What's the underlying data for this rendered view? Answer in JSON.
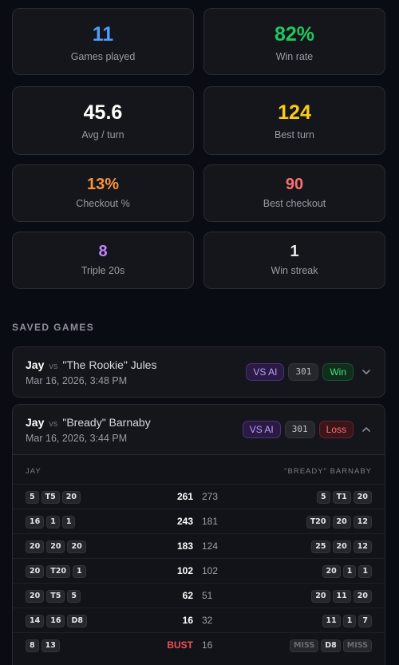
{
  "stats": [
    {
      "value": "11",
      "label": "Games played",
      "color": "#4f9cf9"
    },
    {
      "value": "82%",
      "label": "Win rate",
      "color": "#22c55e"
    },
    {
      "value": "45.6",
      "label": "Avg / turn",
      "color": "#ffffff"
    },
    {
      "value": "124",
      "label": "Best turn",
      "color": "#facc15"
    },
    {
      "value": "13%",
      "label": "Checkout %",
      "color": "#fb923c"
    },
    {
      "value": "90",
      "label": "Best checkout",
      "color": "#f87171"
    },
    {
      "value": "8",
      "label": "Triple 20s",
      "color": "#c084fc"
    },
    {
      "value": "1",
      "label": "Win streak",
      "color": "#e5e5e5"
    }
  ],
  "saved_games": {
    "title": "SAVED GAMES",
    "games": [
      {
        "player": "Jay",
        "vs": "vs",
        "opponent": "\"The Rookie\" Jules",
        "date": "Mar 16, 2026, 3:48 PM",
        "badge_ai": "VS AI",
        "mode": "301",
        "result": "Win",
        "expanded": false
      },
      {
        "player": "Jay",
        "vs": "vs",
        "opponent": "\"Bready\" Barnaby",
        "date": "Mar 16, 2026, 3:44 PM",
        "badge_ai": "VS AI",
        "mode": "301",
        "result": "Loss",
        "expanded": true,
        "turns_header": {
          "left": "JAY",
          "right": "\"BREADY\" BARNABY"
        },
        "turns": [
          {
            "left_darts": [
              "5",
              "T5",
              "20"
            ],
            "left_score": "261",
            "right_score": "273",
            "right_darts": [
              "5",
              "T1",
              "20"
            ]
          },
          {
            "left_darts": [
              "16",
              "1",
              "1"
            ],
            "left_score": "243",
            "right_score": "181",
            "right_darts": [
              "T20",
              "20",
              "12"
            ]
          },
          {
            "left_darts": [
              "20",
              "20",
              "20"
            ],
            "left_score": "183",
            "right_score": "124",
            "right_darts": [
              "25",
              "20",
              "12"
            ]
          },
          {
            "left_darts": [
              "20",
              "T20",
              "1"
            ],
            "left_score": "102",
            "right_score": "102",
            "right_darts": [
              "20",
              "1",
              "1"
            ]
          },
          {
            "left_darts": [
              "20",
              "T5",
              "5"
            ],
            "left_score": "62",
            "right_score": "51",
            "right_darts": [
              "20",
              "11",
              "20"
            ]
          },
          {
            "left_darts": [
              "14",
              "16",
              "D8"
            ],
            "left_score": "16",
            "right_score": "32",
            "right_darts": [
              "11",
              "1",
              "7"
            ]
          },
          {
            "left_darts": [
              "8",
              "13"
            ],
            "left_score": "BUST",
            "right_score": "16",
            "right_darts": [
              "MISS",
              "D8",
              "MISS"
            ]
          }
        ]
      }
    ]
  }
}
